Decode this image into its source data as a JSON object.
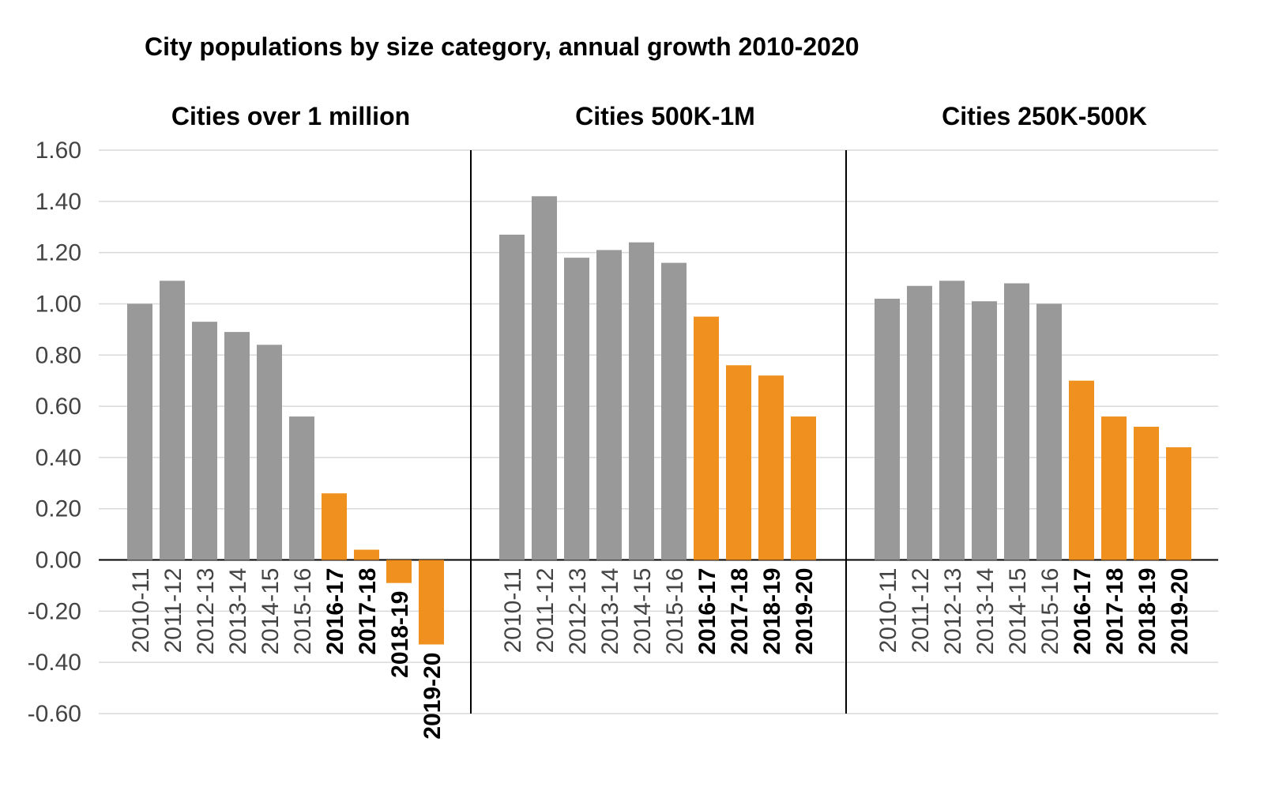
{
  "chart_data": {
    "type": "bar",
    "title": "City populations by size category, annual growth 2010-2020",
    "ylim": [
      -0.6,
      1.6
    ],
    "yticks": [
      "1.60",
      "1.40",
      "1.20",
      "1.00",
      "0.80",
      "0.60",
      "0.40",
      "0.20",
      "0.00",
      "-0.20",
      "-0.40",
      "-0.60"
    ],
    "ytick_values": [
      1.6,
      1.4,
      1.2,
      1.0,
      0.8,
      0.6,
      0.4,
      0.2,
      0.0,
      -0.2,
      -0.4,
      -0.6
    ],
    "grid": true,
    "colors": {
      "historical": "#999999",
      "highlight": "#f0901e"
    },
    "categories": [
      "2010-11",
      "2011-12",
      "2012-13",
      "2013-14",
      "2014-15",
      "2015-16",
      "2016-17",
      "2017-18",
      "2018-19",
      "2019-20"
    ],
    "highlight_from_index": 6,
    "panels": [
      {
        "title": "Cities over 1 million",
        "values": [
          1.0,
          1.09,
          0.93,
          0.89,
          0.84,
          0.56,
          0.26,
          0.04,
          -0.09,
          -0.33
        ]
      },
      {
        "title": "Cities 500K-1M",
        "values": [
          1.27,
          1.42,
          1.18,
          1.21,
          1.24,
          1.16,
          0.95,
          0.76,
          0.72,
          0.56
        ]
      },
      {
        "title": "Cities 250K-500K",
        "values": [
          1.02,
          1.07,
          1.09,
          1.01,
          1.08,
          1.0,
          0.7,
          0.56,
          0.52,
          0.44
        ]
      }
    ]
  }
}
